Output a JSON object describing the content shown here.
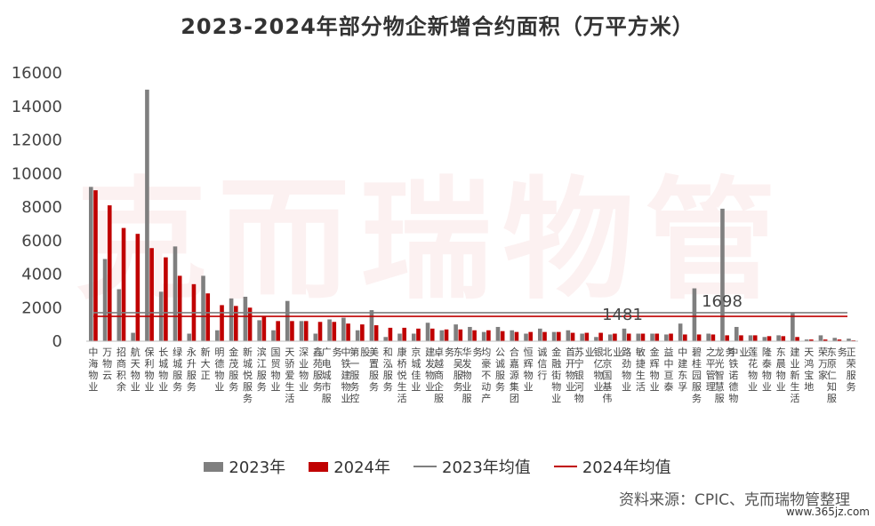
{
  "title": "2023-2024年部分物企新增合约面积（万平方米）",
  "source": "资料来源：CPIC、克而瑞物管整理",
  "watermark": "克而瑞物管",
  "site": "www.365jz.com",
  "legend": {
    "s2023": "2023年",
    "s2024": "2024年",
    "avg2023": "2023年均值",
    "avg2024": "2024年均值"
  },
  "colors": {
    "s2023": "#7f7f7f",
    "s2024": "#c00000",
    "avg2023": "#7f7f7f",
    "avg2024": "#c00000"
  },
  "chart_data": {
    "type": "bar",
    "title": "2023-2024年部分物企新增合约面积（万平方米）",
    "ylim": [
      0,
      16000
    ],
    "yticks": [
      0,
      2000,
      4000,
      6000,
      8000,
      10000,
      12000,
      14000,
      16000
    ],
    "grid": false,
    "legend_position": "bottom",
    "categories": [
      "中海物业",
      "万物云",
      "招商积余",
      "航天物业",
      "保利物业",
      "长城物业",
      "绿城服务",
      "永升服务",
      "新大正",
      "明德物业",
      "金茂服务",
      "新城悦服务",
      "滨江服务",
      "国贸物业",
      "天骄爱生活",
      "深业物业",
      "鑫苑服务",
      "广电城市服务",
      "中铁建物业",
      "第一服务控股",
      "美置服务",
      "和泓服务",
      "康桥悦生活",
      "京城佳业",
      "建发物业",
      "卓越商企服务",
      "东吴服务",
      "华发物业服务",
      "均豪不动产",
      "公诚服务",
      "合嘉源集团",
      "恒辉物业",
      "诚信行",
      "金融街物业",
      "首开物业",
      "苏宁银河物业",
      "银亿物业",
      "北京国基伟业",
      "路劲物业",
      "敏捷生活",
      "金辉物业",
      "益中亘泰",
      "中建东孚",
      "碧桂园服务",
      "之平管理",
      "龙光智慧服务",
      "中铁诺德物业",
      "莲花物业",
      "隆泰物业",
      "东晨物业",
      "建业新生活",
      "天鸿宝地",
      "荣万家",
      "东原仁知服务",
      "正荣服务"
    ],
    "series": [
      {
        "name": "2023年",
        "values": [
          9200,
          4900,
          3100,
          500,
          15000,
          2950,
          5650,
          450,
          3900,
          650,
          2550,
          2650,
          1250,
          650,
          2400,
          1200,
          450,
          1300,
          1400,
          650,
          1850,
          250,
          450,
          450,
          1100,
          650,
          1000,
          850,
          550,
          850,
          650,
          450,
          750,
          550,
          650,
          450,
          250,
          400,
          750,
          450,
          450,
          400,
          1050,
          3150,
          450,
          7900,
          850,
          350,
          250,
          350,
          1700,
          100,
          350,
          200,
          150
        ]
      },
      {
        "name": "2024年",
        "values": [
          9000,
          8100,
          6750,
          6400,
          5550,
          5000,
          3900,
          3400,
          2850,
          2150,
          2100,
          2000,
          1500,
          1200,
          1200,
          1200,
          1150,
          1150,
          1050,
          1000,
          950,
          800,
          800,
          750,
          750,
          700,
          700,
          650,
          650,
          600,
          550,
          550,
          550,
          550,
          500,
          500,
          500,
          450,
          450,
          450,
          450,
          450,
          400,
          400,
          400,
          350,
          350,
          350,
          300,
          300,
          250,
          100,
          100,
          100,
          50
        ]
      }
    ],
    "averages": [
      {
        "name": "2023年均值",
        "value": 1698,
        "label": "1698"
      },
      {
        "name": "2024年均值",
        "value": 1481,
        "label": "1481"
      }
    ]
  }
}
